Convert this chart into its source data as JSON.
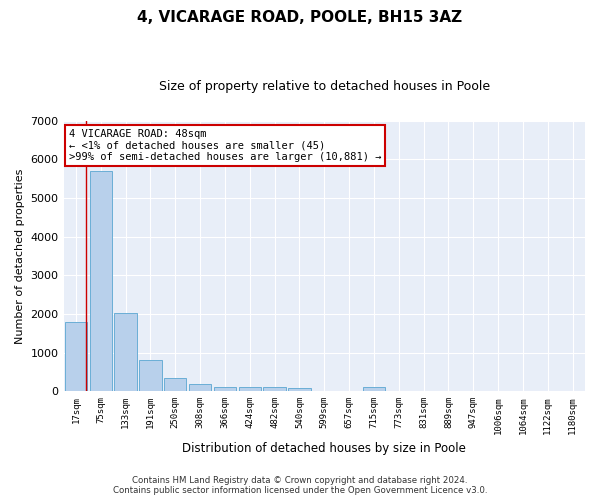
{
  "title": "4, VICARAGE ROAD, POOLE, BH15 3AZ",
  "subtitle": "Size of property relative to detached houses in Poole",
  "xlabel": "Distribution of detached houses by size in Poole",
  "ylabel": "Number of detached properties",
  "bar_color": "#b8d0eb",
  "bar_edge_color": "#6aaed6",
  "background_color": "#e8eef8",
  "grid_color": "#ffffff",
  "categories": [
    "17sqm",
    "75sqm",
    "133sqm",
    "191sqm",
    "250sqm",
    "308sqm",
    "366sqm",
    "424sqm",
    "482sqm",
    "540sqm",
    "599sqm",
    "657sqm",
    "715sqm",
    "773sqm",
    "831sqm",
    "889sqm",
    "947sqm",
    "1006sqm",
    "1064sqm",
    "1122sqm",
    "1180sqm"
  ],
  "values": [
    1800,
    5700,
    2020,
    800,
    340,
    185,
    110,
    105,
    105,
    80,
    0,
    0,
    110,
    0,
    0,
    0,
    0,
    0,
    0,
    0,
    0
  ],
  "ylim": [
    0,
    7000
  ],
  "yticks": [
    0,
    1000,
    2000,
    3000,
    4000,
    5000,
    6000,
    7000
  ],
  "red_line_x": 0.42,
  "annotation_text": "4 VICARAGE ROAD: 48sqm\n← <1% of detached houses are smaller (45)\n>99% of semi-detached houses are larger (10,881) →",
  "annotation_box_color": "#ffffff",
  "annotation_border_color": "#cc0000",
  "footer_line1": "Contains HM Land Registry data © Crown copyright and database right 2024.",
  "footer_line2": "Contains public sector information licensed under the Open Government Licence v3.0."
}
